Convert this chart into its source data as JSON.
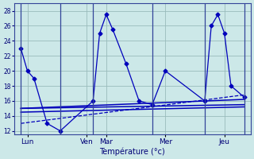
{
  "xlabel": "Température (°c)",
  "ylim": [
    11.5,
    29
  ],
  "xlim": [
    -0.5,
    17.5
  ],
  "yticks": [
    12,
    14,
    16,
    18,
    20,
    22,
    24,
    26,
    28
  ],
  "background_color": "#cce8e8",
  "line_color": "#0000bb",
  "grid_color": "#99bbbb",
  "vline_color": "#334499",
  "xtick_positions": [
    0.5,
    5,
    6.5,
    11,
    15.5
  ],
  "xtick_labels": [
    "Lun",
    "Ven",
    "Mar",
    "Mer",
    "Jeu"
  ],
  "vline_positions": [
    0,
    3,
    5.5,
    10,
    14,
    17
  ],
  "main_x": [
    0,
    0.5,
    1,
    2,
    3,
    5.5,
    6,
    6.5,
    7,
    8,
    9,
    10,
    11,
    14,
    14.5,
    15,
    15.5,
    16,
    17
  ],
  "main_y": [
    23,
    20,
    19,
    13,
    12,
    16,
    25,
    27.5,
    25.5,
    21,
    16,
    15.5,
    20,
    16,
    26,
    27.5,
    25,
    18,
    16.5
  ],
  "trend1_x": [
    0,
    17
  ],
  "trend1_y": [
    15.0,
    16.2
  ],
  "trend2_x": [
    0,
    17
  ],
  "trend2_y": [
    15.0,
    15.5
  ],
  "trend3_x": [
    0,
    17
  ],
  "trend3_y": [
    14.5,
    15.2
  ],
  "trend4_x": [
    0,
    17
  ],
  "trend4_y": [
    13.0,
    16.8
  ]
}
